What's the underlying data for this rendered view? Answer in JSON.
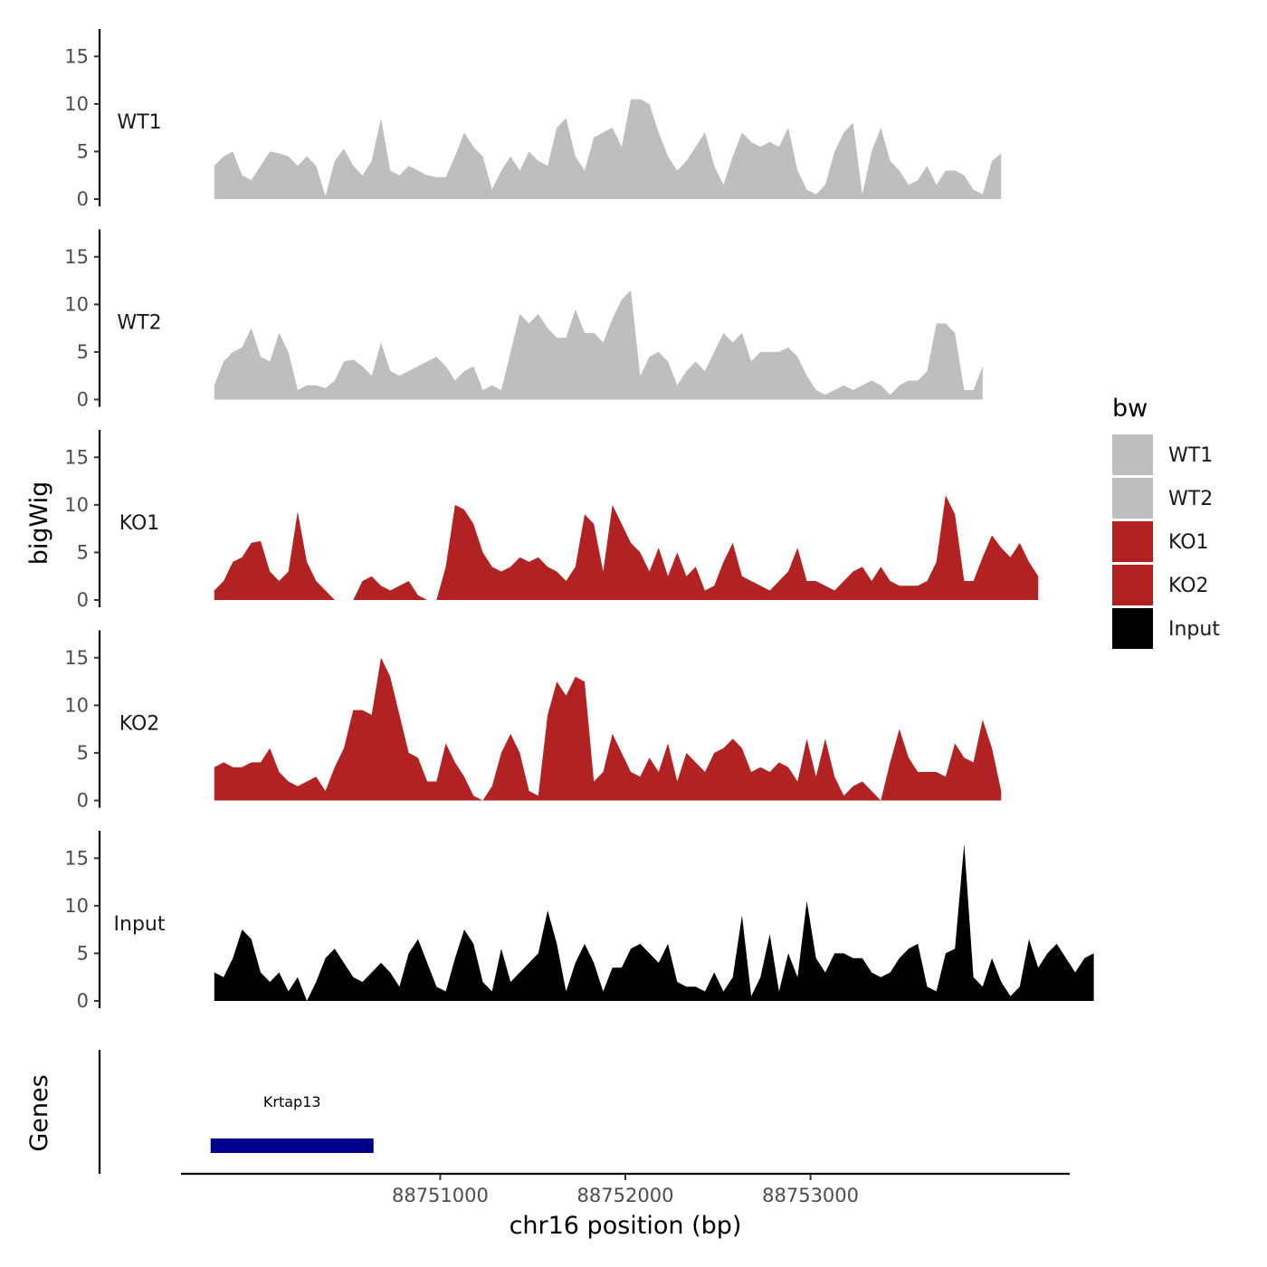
{
  "chart_data": {
    "type": "area",
    "facets": "stacked genome browser tracks sharing one x axis",
    "x_axis": {
      "title": "chr16 position (bp)",
      "range": [
        88749600,
        88754400
      ],
      "ticks": [
        88751000,
        88752000,
        88753000
      ],
      "tick_labels": [
        "88751000",
        "88752000",
        "88753000"
      ]
    },
    "y_axis": {
      "title": "bigWig",
      "range": [
        0,
        17.5
      ],
      "ticks": [
        0,
        5,
        10,
        15
      ],
      "tick_labels": [
        "0",
        "5",
        "10",
        "15"
      ]
    },
    "x_start": 88749780,
    "x_step": 50,
    "tracks": [
      {
        "name": "WT1",
        "label": "WT1",
        "color": "#bebebe",
        "values": [
          3.5,
          4.5,
          5,
          2.5,
          2,
          3.5,
          5,
          4.8,
          4.5,
          3.5,
          4.5,
          3.5,
          0.3,
          4,
          5.3,
          3.5,
          2.5,
          4,
          8.5,
          3,
          2.5,
          3.5,
          3,
          2.5,
          2.3,
          2.3,
          4.5,
          7,
          5.5,
          4.5,
          1,
          3,
          4.5,
          3,
          5,
          4,
          3.5,
          7.5,
          8.5,
          4.5,
          3,
          6.5,
          7,
          7.5,
          5.5,
          10.5,
          10.5,
          10,
          7,
          4.5,
          3,
          4,
          5.5,
          7,
          3.5,
          1.5,
          4.5,
          7,
          6,
          5.5,
          6,
          5.5,
          7.5,
          3,
          1,
          0.5,
          1.5,
          5,
          7,
          8,
          0.5,
          5,
          7.5,
          4,
          3,
          1.5,
          2,
          3.5,
          1.5,
          3,
          3,
          2.5,
          1,
          0.5,
          4,
          4.8
        ]
      },
      {
        "name": "WT2",
        "label": "WT2",
        "color": "#bebebe",
        "values": [
          1.5,
          4,
          5,
          5.5,
          7.5,
          4.5,
          4,
          7,
          5,
          1,
          1.5,
          1.5,
          1.2,
          2,
          4,
          4.2,
          3.5,
          2.5,
          6,
          3,
          2.5,
          3,
          3.5,
          4,
          4.5,
          3.5,
          2,
          3,
          3.5,
          1,
          1.5,
          1,
          5,
          9,
          8,
          9,
          7.5,
          6.5,
          6.5,
          9.5,
          7,
          7,
          6,
          8.5,
          10.5,
          11.5,
          2.5,
          4.5,
          5,
          4,
          1.5,
          3,
          4,
          3,
          5,
          7,
          6,
          7,
          4,
          5,
          5,
          5,
          5.5,
          4.5,
          2.5,
          1,
          0.5,
          1,
          1.5,
          1,
          1.5,
          2,
          1.5,
          0.5,
          1.5,
          2,
          2,
          3,
          8,
          8,
          7,
          1,
          1,
          3.5
        ]
      },
      {
        "name": "KO1",
        "label": "KO1",
        "color": "#b22222",
        "values": [
          1,
          2,
          4,
          4.5,
          6,
          6.2,
          3,
          2,
          3,
          9.3,
          4,
          2,
          1,
          0,
          0,
          0,
          2,
          2.5,
          1.5,
          1,
          1.5,
          2,
          0.5,
          0,
          0,
          3.5,
          10,
          9.5,
          8,
          5,
          3.5,
          3,
          3.5,
          4.5,
          4,
          4.5,
          3.5,
          3,
          2,
          3.5,
          9,
          8,
          3,
          10,
          8,
          6,
          5,
          3,
          5.5,
          2.5,
          5,
          2.5,
          3.5,
          1,
          1.5,
          4,
          6,
          2.5,
          2,
          1.5,
          1,
          2,
          3,
          5.5,
          2,
          2,
          1.5,
          1,
          2,
          3,
          3.5,
          2,
          3.5,
          2,
          1.5,
          1.5,
          1.5,
          2,
          4,
          11,
          9,
          2,
          2,
          4.5,
          6.8,
          5.5,
          4.5,
          6,
          4,
          2.5
        ]
      },
      {
        "name": "KO2",
        "label": "KO2",
        "color": "#b22222",
        "values": [
          3.5,
          4,
          3.5,
          3.5,
          4,
          4,
          5.5,
          3,
          2,
          1.5,
          2,
          2.5,
          1,
          3.5,
          5.5,
          9.5,
          9.5,
          9,
          15,
          13,
          9,
          5,
          4.5,
          2,
          2,
          6,
          4,
          2.5,
          0.5,
          0,
          1.5,
          5,
          7,
          5,
          1,
          0.5,
          9,
          12.5,
          11,
          13,
          12.5,
          2,
          3,
          7,
          5,
          3,
          2.5,
          4.5,
          3,
          6,
          2,
          5,
          4,
          3,
          5,
          5.5,
          6.5,
          5.5,
          3,
          3.5,
          3,
          4,
          3.5,
          2,
          6.5,
          2.5,
          6.5,
          2.5,
          0.5,
          1.5,
          2,
          1,
          0,
          4,
          7.5,
          4.5,
          3,
          3,
          3,
          2.5,
          6,
          4.5,
          4,
          8.5,
          5.5,
          1
        ]
      },
      {
        "name": "Input",
        "label": "Input",
        "color": "#000000",
        "values": [
          3,
          2.5,
          4.5,
          7.5,
          6.5,
          3,
          2,
          3,
          1,
          2.5,
          0,
          2,
          4.5,
          5.5,
          4,
          2.5,
          2,
          3,
          4,
          3,
          1.5,
          5,
          6.5,
          4,
          1.5,
          1,
          4.5,
          7.5,
          6,
          2,
          1,
          5.5,
          2,
          3,
          4,
          5,
          9.5,
          6,
          1,
          4,
          6,
          4,
          1,
          3.5,
          3.5,
          5.5,
          6,
          5,
          4,
          6,
          2,
          1.5,
          1.5,
          1,
          3,
          1,
          2.5,
          9,
          0.5,
          2.5,
          7,
          1,
          5,
          2.5,
          10.5,
          4.5,
          3,
          5,
          5,
          4.5,
          4.5,
          3,
          2.5,
          3,
          4.5,
          5.5,
          6,
          1.5,
          1,
          5,
          5.5,
          16.5,
          2.5,
          1.5,
          4.5,
          2,
          0.5,
          1.5,
          6.5,
          3.5,
          5,
          6,
          4.5,
          3,
          4.5,
          5
        ]
      }
    ],
    "genes": {
      "title": "Genes",
      "color": "#00008b",
      "items": [
        {
          "name": "Krtap13",
          "start": 88749760,
          "end": 88750640
        }
      ]
    },
    "legend": {
      "title": "bw",
      "placement": "right",
      "entries": [
        {
          "label": "WT1",
          "color": "#bebebe"
        },
        {
          "label": "WT2",
          "color": "#bebebe"
        },
        {
          "label": "KO1",
          "color": "#b22222"
        },
        {
          "label": "KO2",
          "color": "#b22222"
        },
        {
          "label": "Input",
          "color": "#000000"
        }
      ]
    },
    "grid": false
  }
}
